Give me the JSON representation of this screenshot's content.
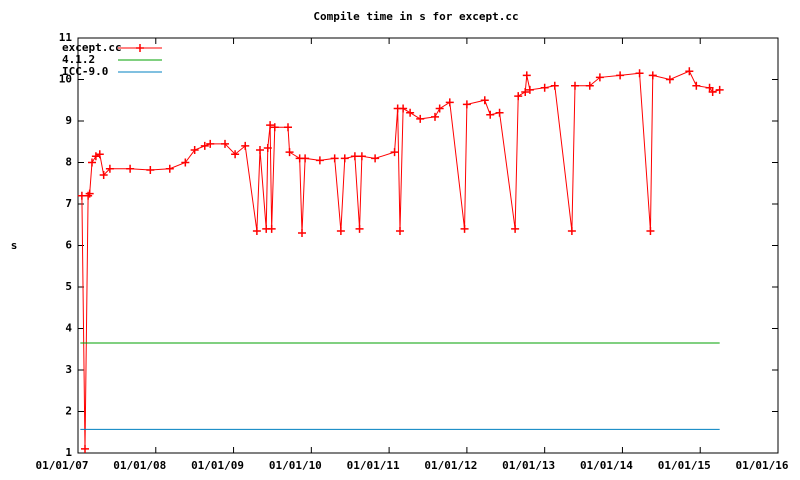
{
  "chart_data": {
    "type": "line",
    "title": "Compile time in s for except.cc",
    "y_label": "s",
    "xlim": [
      2007,
      2016
    ],
    "ylim": [
      1,
      11
    ],
    "xticks": [
      {
        "value": 2007,
        "label": "01/01/07"
      },
      {
        "value": 2008,
        "label": "01/01/08"
      },
      {
        "value": 2009,
        "label": "01/01/09"
      },
      {
        "value": 2010,
        "label": "01/01/10"
      },
      {
        "value": 2011,
        "label": "01/01/11"
      },
      {
        "value": 2012,
        "label": "01/01/12"
      },
      {
        "value": 2013,
        "label": "01/01/13"
      },
      {
        "value": 2014,
        "label": "01/01/14"
      },
      {
        "value": 2015,
        "label": "01/01/15"
      },
      {
        "value": 2016,
        "label": "01/01/16"
      }
    ],
    "yticks": [
      1,
      2,
      3,
      4,
      5,
      6,
      7,
      8,
      9,
      10,
      11
    ],
    "grid": false,
    "legend": "top-left",
    "series": [
      {
        "name": "except.cc",
        "color": "#ff0000",
        "marker": "plus",
        "x": [
          2007.05,
          2007.09,
          2007.13,
          2007.15,
          2007.18,
          2007.23,
          2007.28,
          2007.33,
          2007.41,
          2007.67,
          2007.93,
          2008.18,
          2008.38,
          2008.5,
          2008.63,
          2008.7,
          2008.89,
          2009.02,
          2009.15,
          2009.3,
          2009.34,
          2009.42,
          2009.44,
          2009.47,
          2009.49,
          2009.53,
          2009.7,
          2009.72,
          2009.85,
          2009.88,
          2009.92,
          2010.11,
          2010.3,
          2010.38,
          2010.43,
          2010.56,
          2010.62,
          2010.65,
          2010.82,
          2011.07,
          2011.11,
          2011.14,
          2011.18,
          2011.27,
          2011.4,
          2011.59,
          2011.65,
          2011.78,
          2011.97,
          2012.0,
          2012.23,
          2012.3,
          2012.42,
          2012.62,
          2012.66,
          2012.75,
          2012.77,
          2012.81,
          2013.0,
          2013.13,
          2013.35,
          2013.39,
          2013.58,
          2013.71,
          2013.97,
          2014.22,
          2014.36,
          2014.39,
          2014.61,
          2014.86,
          2014.95,
          2015.12,
          2015.16,
          2015.25
        ],
        "values": [
          7.2,
          1.1,
          7.2,
          7.25,
          8.0,
          8.15,
          8.2,
          7.7,
          7.85,
          7.85,
          7.82,
          7.85,
          8.0,
          8.3,
          8.4,
          8.45,
          8.45,
          8.2,
          8.4,
          6.35,
          8.3,
          6.4,
          8.35,
          8.9,
          6.4,
          8.85,
          8.85,
          8.25,
          8.1,
          6.3,
          8.1,
          8.05,
          8.1,
          6.35,
          8.1,
          8.15,
          6.4,
          8.15,
          8.1,
          8.25,
          9.3,
          6.35,
          9.3,
          9.2,
          9.05,
          9.1,
          9.3,
          9.45,
          6.4,
          9.4,
          9.5,
          9.15,
          9.2,
          6.4,
          9.6,
          9.7,
          10.1,
          9.75,
          9.8,
          9.85,
          6.35,
          9.85,
          9.85,
          10.05,
          10.1,
          10.15,
          6.35,
          10.1,
          10.0,
          10.2,
          9.85,
          9.8,
          9.7,
          9.75
        ]
      },
      {
        "name": "4.1.2",
        "color": "#00a000",
        "x": [
          2007.03,
          2015.25
        ],
        "values": [
          3.65,
          3.65
        ]
      },
      {
        "name": "ICC-9.0",
        "color": "#0080c0",
        "x": [
          2007.03,
          2015.25
        ],
        "values": [
          1.57,
          1.57
        ]
      }
    ]
  }
}
